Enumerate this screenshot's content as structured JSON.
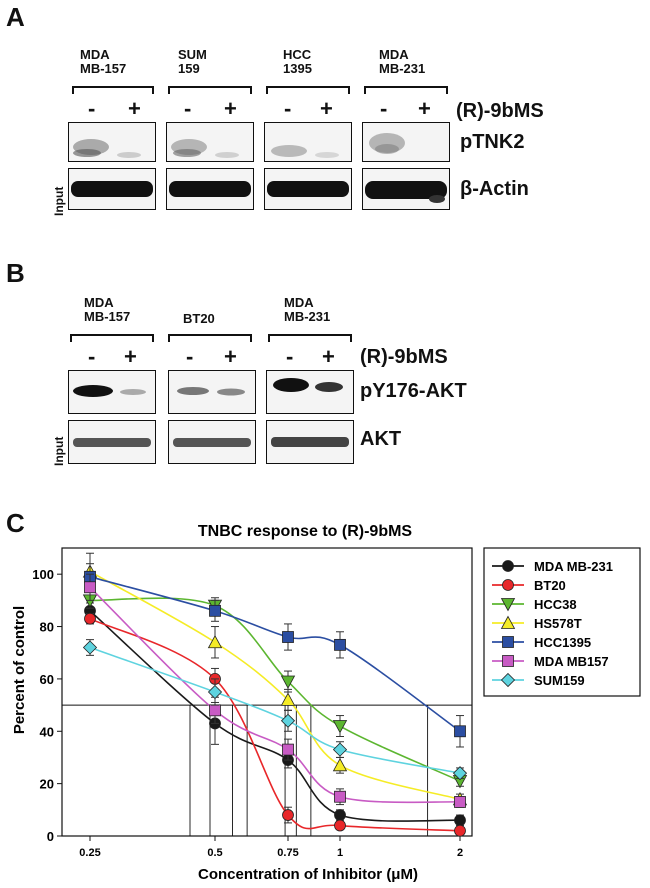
{
  "panelA": {
    "letter": "A",
    "groups": [
      "MDA\nMB-157",
      "SUM\n159",
      "HCC\n1395",
      "MDA\nMB-231"
    ],
    "minus": "-",
    "plus": "+",
    "treatment": "(R)-9bMS",
    "row1_label": "pTNK2",
    "row2_label": "β-Actin",
    "input_label": "Input"
  },
  "panelB": {
    "letter": "B",
    "groups": [
      "MDA\nMB-157",
      "BT20",
      "MDA\nMB-231"
    ],
    "minus": "-",
    "plus": "+",
    "treatment": "(R)-9bMS",
    "row1_label": "pY176-AKT",
    "row2_label": "AKT",
    "input_label": "Input"
  },
  "panelC": {
    "letter": "C",
    "chart_data": {
      "type": "line",
      "title": "TNBC response to (R)-9bMS",
      "xlabel": "Concentration of Inhibitor (μM)",
      "ylabel": "Percent of control",
      "x_ticks": [
        "0.25",
        "0.5",
        "0.75",
        "1",
        "2"
      ],
      "y_ticks": [
        "0",
        "20",
        "40",
        "60",
        "80",
        "100"
      ],
      "ylim": [
        0,
        110
      ],
      "threshold": 50,
      "grid": false,
      "legend_position": "right",
      "series": [
        {
          "name": "MDA MB-231",
          "color": "#1a1a1a",
          "marker": "circle",
          "values": [
            86,
            43,
            29,
            8,
            6
          ],
          "err": [
            3,
            8,
            3,
            2,
            2
          ]
        },
        {
          "name": "BT20",
          "color": "#e8272a",
          "marker": "circle",
          "values": [
            83,
            60,
            8,
            4,
            2
          ],
          "err": [
            2,
            4,
            3,
            1,
            1
          ]
        },
        {
          "name": "HCC38",
          "color": "#5cb630",
          "marker": "triangle-down",
          "values": [
            90,
            88,
            59,
            42,
            21
          ],
          "err": [
            3,
            3,
            4,
            4,
            2
          ]
        },
        {
          "name": "HS578T",
          "color": "#f5ec26",
          "marker": "triangle-up",
          "values": [
            101,
            74,
            52,
            27,
            14
          ],
          "err": [
            7,
            6,
            4,
            3,
            2
          ]
        },
        {
          "name": "HCC1395",
          "color": "#2b4ea2",
          "marker": "square",
          "values": [
            99,
            86,
            76,
            73,
            40
          ],
          "err": [
            5,
            4,
            5,
            5,
            6
          ]
        },
        {
          "name": "MDA MB157",
          "color": "#c85bc4",
          "marker": "square",
          "values": [
            95,
            48,
            33,
            15,
            13
          ],
          "err": [
            5,
            5,
            4,
            3,
            2
          ]
        },
        {
          "name": "SUM159",
          "color": "#5ed3df",
          "marker": "diamond",
          "values": [
            72,
            55,
            44,
            33,
            24
          ],
          "err": [
            3,
            5,
            4,
            3,
            2
          ]
        }
      ],
      "ic50_drop_x": [
        0.45,
        0.49,
        0.56,
        0.61,
        0.74,
        0.79,
        0.86,
        1.73
      ]
    }
  }
}
